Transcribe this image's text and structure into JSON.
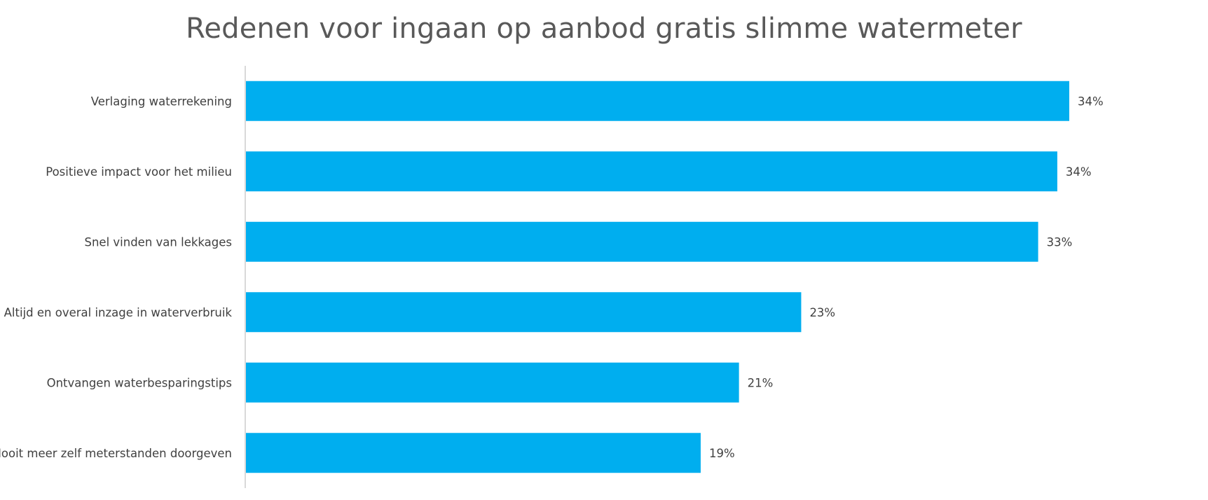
{
  "chart_data": {
    "type": "bar",
    "orientation": "horizontal",
    "title": "Redenen voor ingaan op aanbod gratis slimme watermeter",
    "xlabel": "",
    "ylabel": "",
    "categories": [
      "Verlaging waterrekening",
      "Positieve impact voor het milieu",
      "Snel vinden van lekkages",
      "Altijd en overal inzage in waterverbruik",
      "Ontvangen waterbesparingstips",
      "Nooit meer zelf meterstanden doorgeven"
    ],
    "values": [
      34.4,
      33.9,
      33.1,
      23.2,
      20.6,
      19.0
    ],
    "data_labels": [
      "34%",
      "34%",
      "33%",
      "23%",
      "21%",
      "19%"
    ],
    "xlim": [
      0,
      34.4
    ],
    "grid": false,
    "legend": "none",
    "bar_color": "#00AEEF",
    "axis_color": "#D9D9D9"
  }
}
